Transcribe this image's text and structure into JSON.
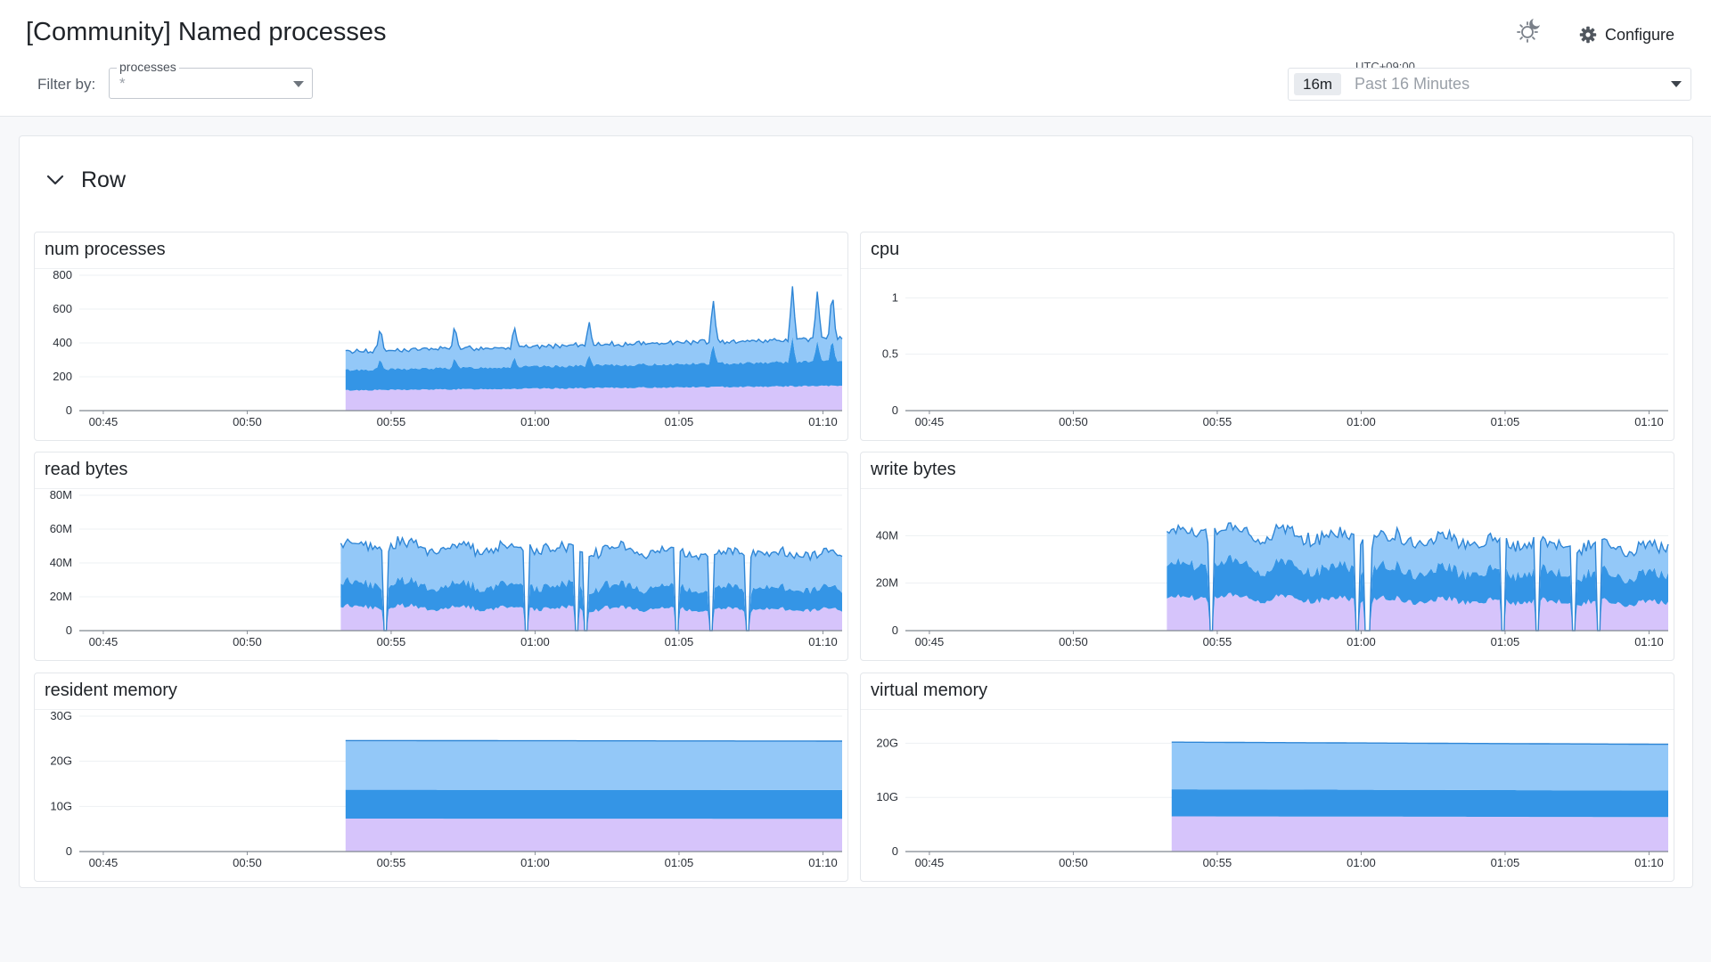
{
  "header": {
    "title": "[Community] Named processes",
    "filter_label": "Filter by:",
    "filter": {
      "legend": "processes",
      "value": "*"
    },
    "configure_label": "Configure",
    "timezone": "UTC+09:00",
    "time_badge": "16m",
    "time_range": "Past 16 Minutes"
  },
  "row": {
    "title": "Row"
  },
  "colors": {
    "bottom": "#d6c4fb",
    "middle": "#3495e6",
    "top": "#93c8f8",
    "outline": "#2f86d6"
  },
  "chart_data": [
    {
      "type": "area",
      "title": "num processes",
      "x": [
        "00:45",
        "00:50",
        "00:55",
        "01:00",
        "01:05",
        "01:10"
      ],
      "y_ticks": [
        "0",
        "200",
        "400",
        "600",
        "800"
      ],
      "ylim": [
        0,
        800
      ],
      "stacked": true,
      "shape": "spiky",
      "start": "00:53:25",
      "end": "01:10:40",
      "bands": [
        120,
        120,
        110
      ],
      "trend": 0.22,
      "spikes": [
        [
          0.07,
          140
        ],
        [
          0.22,
          150
        ],
        [
          0.34,
          130
        ],
        [
          0.49,
          140
        ],
        [
          0.74,
          260
        ],
        [
          0.9,
          320
        ],
        [
          0.95,
          280
        ],
        [
          0.98,
          300
        ]
      ]
    },
    {
      "type": "area",
      "title": "cpu",
      "x": [
        "00:45",
        "00:50",
        "00:55",
        "01:00",
        "01:05",
        "01:10"
      ],
      "y_ticks": [
        "0",
        "0.5",
        "1"
      ],
      "ylim": [
        0,
        1.2
      ],
      "stacked": true,
      "shape": "empty"
    },
    {
      "type": "area",
      "title": "read bytes",
      "x": [
        "00:45",
        "00:50",
        "00:55",
        "01:00",
        "01:05",
        "01:10"
      ],
      "y_ticks": [
        "0",
        "20M",
        "40M",
        "60M",
        "80M"
      ],
      "ylim": [
        0,
        80
      ],
      "stacked": true,
      "shape": "noisy",
      "start": "00:53:15",
      "end": "01:10:40",
      "bands": [
        14,
        14,
        23
      ],
      "trend": -0.12,
      "dips": [
        0.09,
        0.37,
        0.47,
        0.49,
        0.67,
        0.74,
        0.81
      ]
    },
    {
      "type": "area",
      "title": "write bytes",
      "x": [
        "00:45",
        "00:50",
        "00:55",
        "01:00",
        "01:05",
        "01:10"
      ],
      "y_ticks": [
        "0",
        "20M",
        "40M"
      ],
      "ylim": [
        0,
        57
      ],
      "stacked": true,
      "shape": "noisy",
      "start": "00:53:15",
      "end": "01:10:40",
      "bands": [
        14,
        14,
        14
      ],
      "trend": -0.18,
      "dips": [
        0.09,
        0.38,
        0.4,
        0.67,
        0.74,
        0.81,
        0.86
      ]
    },
    {
      "type": "area",
      "title": "resident memory",
      "x": [
        "00:45",
        "00:50",
        "00:55",
        "01:00",
        "01:05",
        "01:10"
      ],
      "y_ticks": [
        "0",
        "10G",
        "20G",
        "30G"
      ],
      "ylim": [
        0,
        30
      ],
      "stacked": true,
      "shape": "flat",
      "start": "00:53:25",
      "end": "01:10:40",
      "bands": [
        7.3,
        6.4,
        10.9
      ],
      "trend": -0.005
    },
    {
      "type": "area",
      "title": "virtual memory",
      "x": [
        "00:45",
        "00:50",
        "00:55",
        "01:00",
        "01:05",
        "01:10"
      ],
      "y_ticks": [
        "0",
        "10G",
        "20G"
      ],
      "ylim": [
        0,
        25
      ],
      "stacked": true,
      "shape": "flat",
      "start": "00:53:25",
      "end": "01:10:40",
      "bands": [
        6.5,
        5,
        8.7
      ],
      "trend": -0.02
    }
  ]
}
